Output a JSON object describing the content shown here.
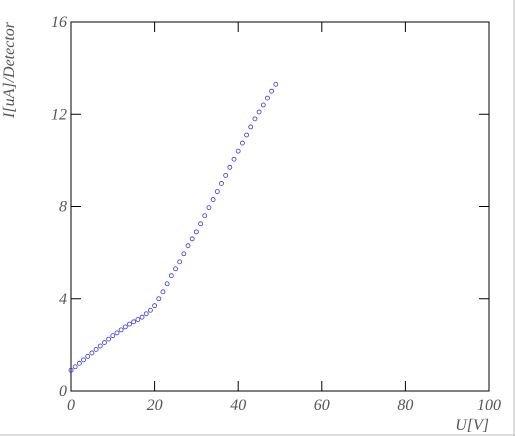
{
  "chart_data": {
    "type": "scatter",
    "x_label": "U[V]",
    "y_label": "I[uA]/Detector",
    "x": [
      0,
      1,
      2,
      3,
      4,
      5,
      6,
      7,
      8,
      9,
      10,
      11,
      12,
      13,
      14,
      15,
      16,
      17,
      18,
      19,
      20,
      21,
      22,
      23,
      24,
      25,
      26,
      27,
      28,
      29,
      30,
      31,
      32,
      33,
      34,
      35,
      36,
      37,
      38,
      39,
      40,
      41,
      42,
      43,
      44,
      45,
      46,
      47,
      48,
      49
    ],
    "values": [
      0.9,
      1.05,
      1.2,
      1.35,
      1.5,
      1.65,
      1.8,
      1.95,
      2.1,
      2.25,
      2.4,
      2.52,
      2.65,
      2.78,
      2.9,
      3.0,
      3.1,
      3.2,
      3.35,
      3.5,
      3.7,
      4.0,
      4.3,
      4.65,
      5.0,
      5.3,
      5.6,
      5.95,
      6.3,
      6.6,
      6.9,
      7.25,
      7.6,
      7.95,
      8.3,
      8.65,
      9.0,
      9.35,
      9.7,
      10.05,
      10.4,
      10.75,
      11.1,
      11.45,
      11.8,
      12.1,
      12.4,
      12.7,
      13.0,
      13.3
    ],
    "color": "#3333dd",
    "xlim": [
      0,
      100
    ],
    "xticks": [
      0,
      20,
      40,
      60,
      80,
      100
    ],
    "ylim": [
      0,
      16
    ],
    "yticks": [
      0,
      4,
      8,
      12,
      16
    ],
    "grid": false
  }
}
